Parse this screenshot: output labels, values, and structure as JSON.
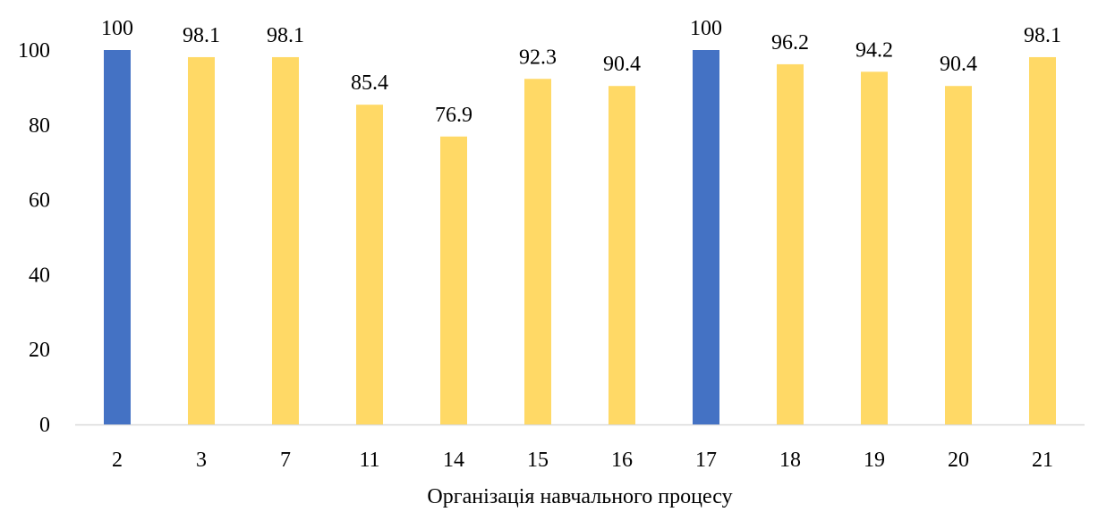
{
  "chart_data": {
    "type": "bar",
    "categories": [
      "2",
      "3",
      "7",
      "11",
      "14",
      "15",
      "16",
      "17",
      "18",
      "19",
      "20",
      "21"
    ],
    "values": [
      100,
      98.1,
      98.1,
      85.4,
      76.9,
      92.3,
      90.4,
      100,
      96.2,
      94.2,
      90.4,
      98.1
    ],
    "data_labels": [
      "100",
      "98.1",
      "98.1",
      "85.4",
      "76.9",
      "92.3",
      "90.4",
      "100",
      "96.2",
      "94.2",
      "90.4",
      "98.1"
    ],
    "highlighted_categories": [
      "2",
      "17"
    ],
    "colors": {
      "default": "#FFD966",
      "highlight": "#4472C4",
      "axis": "#D9D9D9"
    },
    "yticks": [
      "0",
      "20",
      "40",
      "60",
      "80",
      "100"
    ],
    "ylim": [
      0,
      100
    ],
    "title": "",
    "xlabel": "Організація навчального процесу",
    "ylabel": "",
    "grid": false,
    "legend": "none"
  }
}
